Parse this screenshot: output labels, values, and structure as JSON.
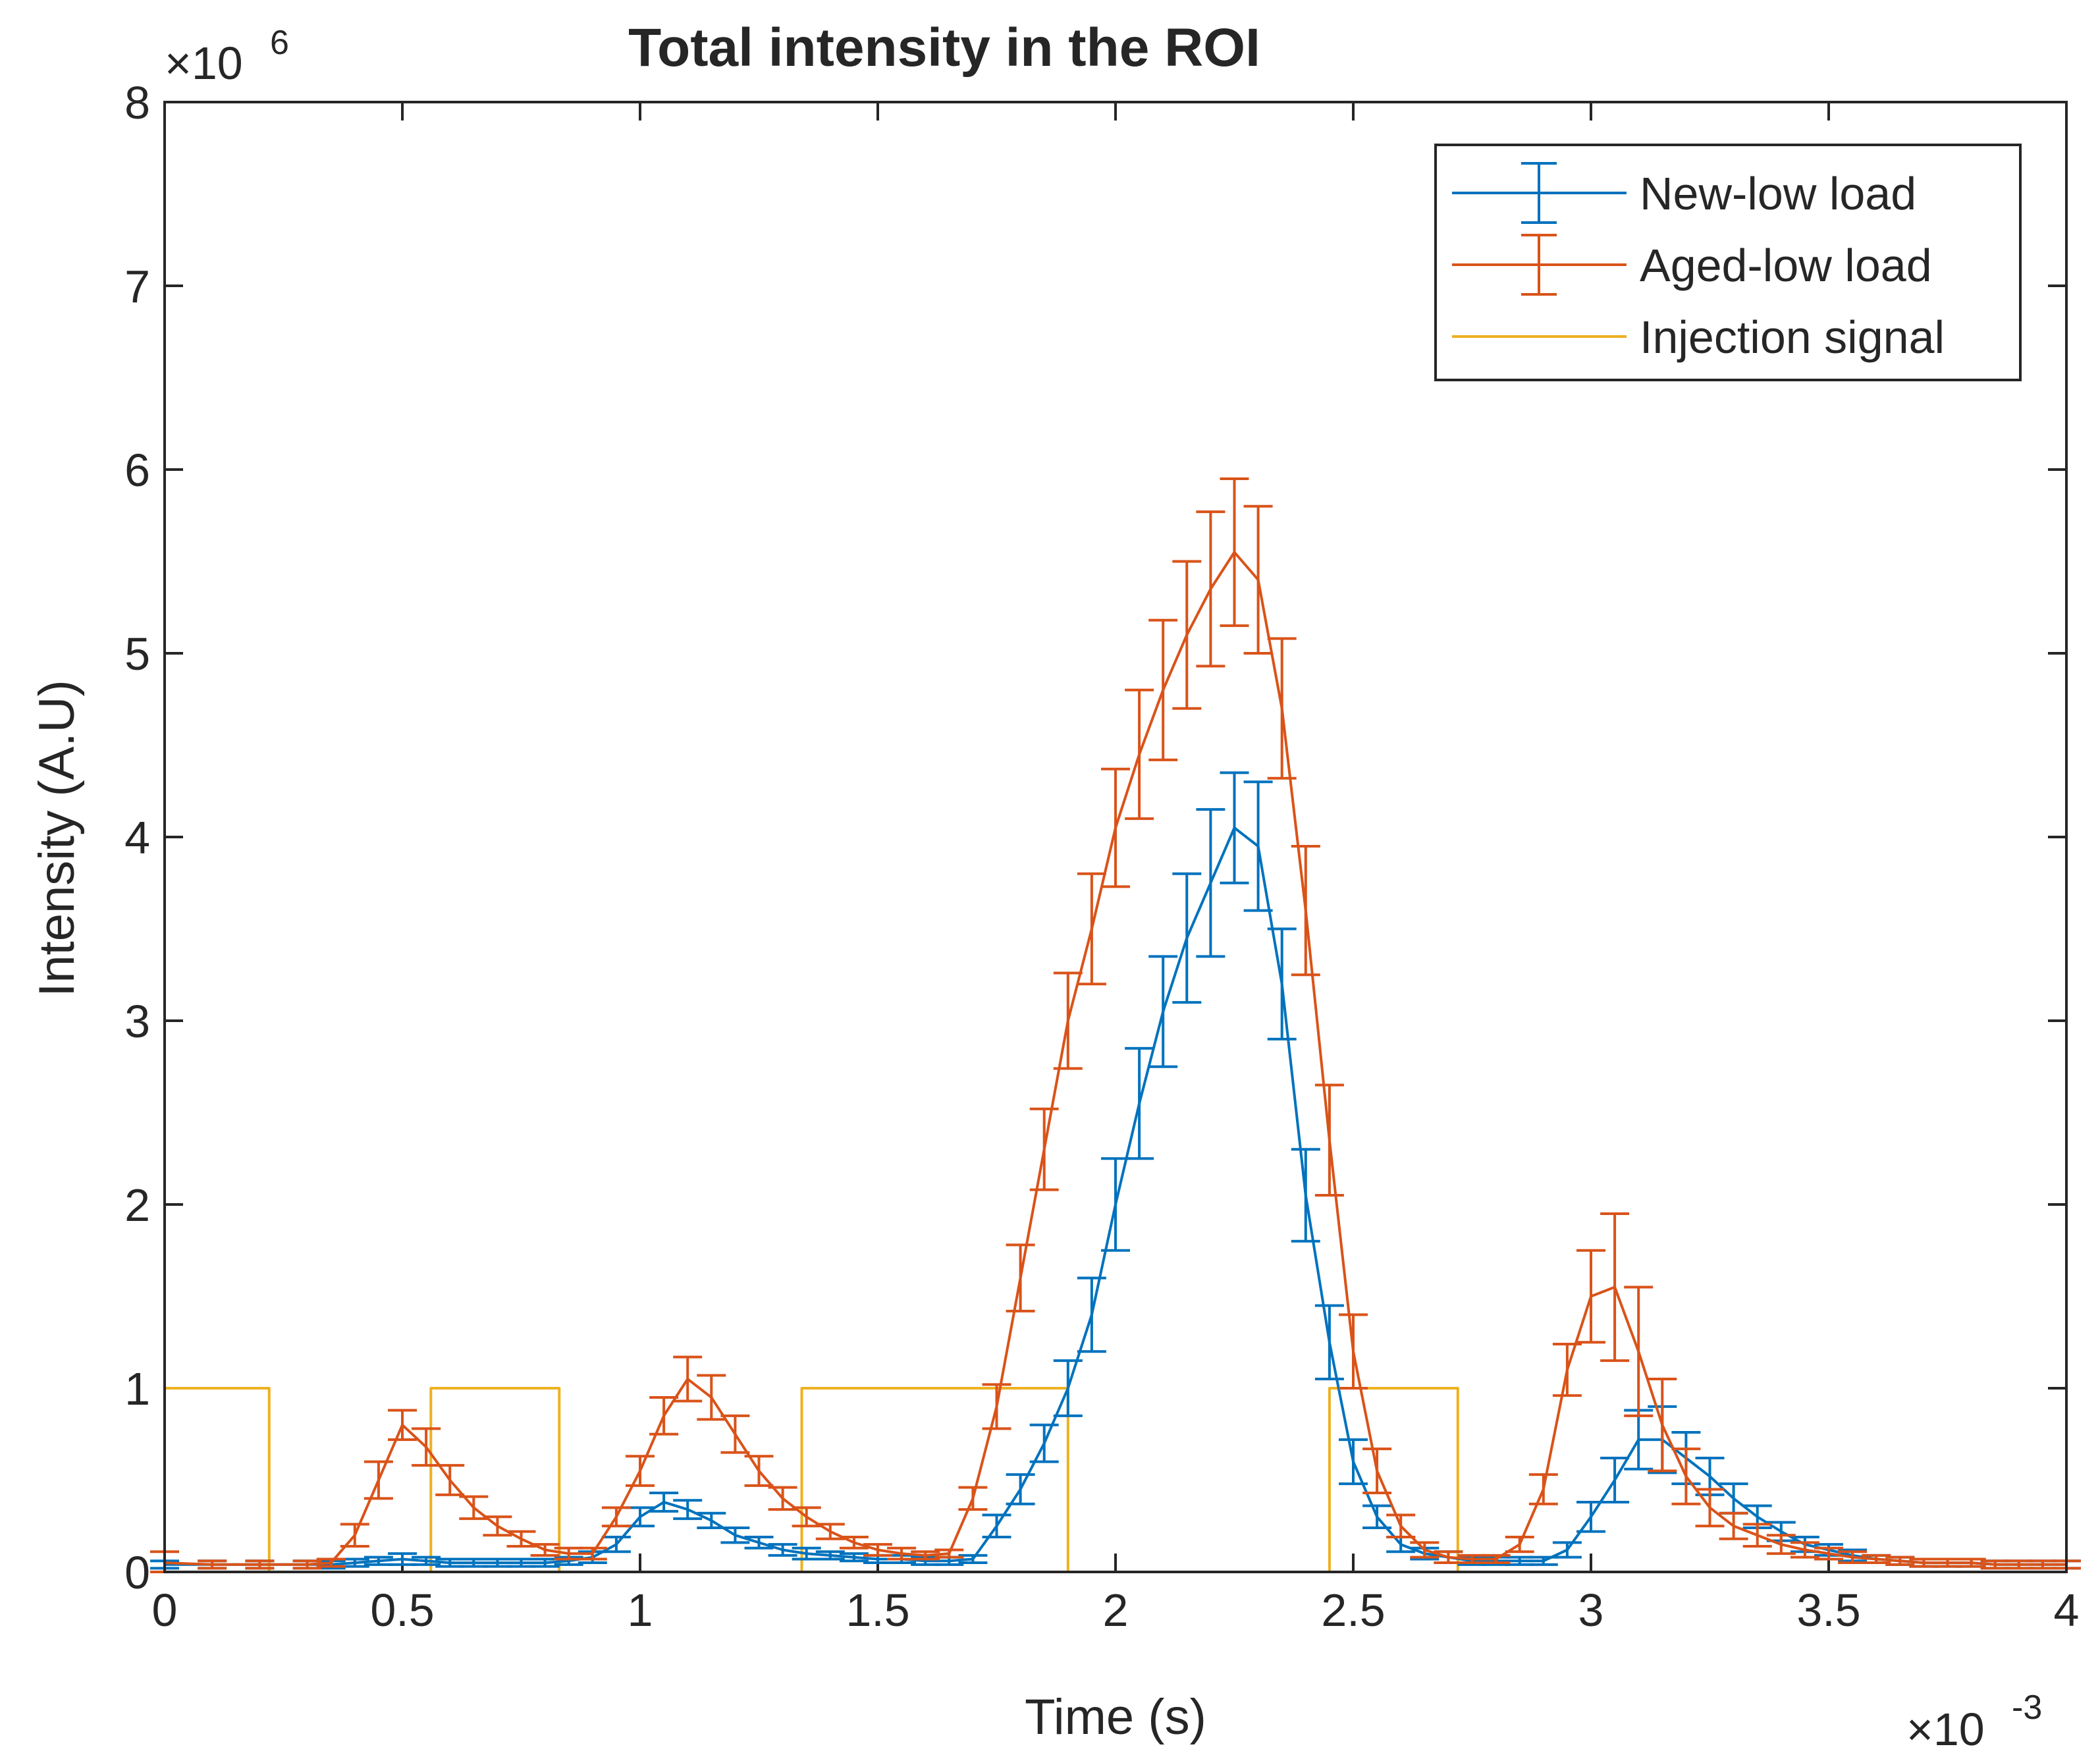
{
  "chart_data": {
    "type": "line",
    "title": "Total intensity in the ROI",
    "xlabel": "Time (s)",
    "ylabel": "Intensity (A.U)",
    "x_multiplier": "×10",
    "x_multiplier_exp": "-3",
    "y_multiplier": "×10",
    "y_multiplier_exp": "6",
    "xlim": [
      0,
      4
    ],
    "ylim": [
      0,
      8
    ],
    "x_ticks": [
      0,
      0.5,
      1,
      1.5,
      2,
      2.5,
      3,
      3.5,
      4
    ],
    "x_tick_labels": [
      "0",
      "0.5",
      "1",
      "1.5",
      "2",
      "2.5",
      "3",
      "3.5",
      "4"
    ],
    "y_ticks": [
      0,
      1,
      2,
      3,
      4,
      5,
      6,
      7,
      8
    ],
    "y_tick_labels": [
      "0",
      "1",
      "2",
      "3",
      "4",
      "5",
      "6",
      "7",
      "8"
    ],
    "grid": false,
    "legend_position": "top-right",
    "x_units_note": "x values in units of 1e-3 s; y values in units of 1e6",
    "series": [
      {
        "name": "New-low load",
        "color": "#0072BD",
        "error_bars": true,
        "x": [
          0,
          0.1,
          0.2,
          0.3,
          0.35,
          0.4,
          0.45,
          0.5,
          0.55,
          0.6,
          0.65,
          0.7,
          0.75,
          0.8,
          0.85,
          0.9,
          0.95,
          1,
          1.05,
          1.1,
          1.15,
          1.2,
          1.25,
          1.3,
          1.35,
          1.4,
          1.45,
          1.5,
          1.55,
          1.6,
          1.65,
          1.7,
          1.75,
          1.8,
          1.85,
          1.9,
          1.95,
          2,
          2.05,
          2.1,
          2.15,
          2.2,
          2.25,
          2.3,
          2.35,
          2.4,
          2.45,
          2.5,
          2.55,
          2.6,
          2.65,
          2.7,
          2.75,
          2.8,
          2.85,
          2.9,
          2.95,
          3,
          3.05,
          3.1,
          3.15,
          3.2,
          3.25,
          3.3,
          3.35,
          3.4,
          3.45,
          3.5,
          3.55,
          3.6,
          3.65,
          3.7,
          3.75,
          3.8,
          3.85,
          3.9,
          3.95,
          4
        ],
        "y": [
          0.04,
          0.04,
          0.04,
          0.04,
          0.04,
          0.05,
          0.06,
          0.07,
          0.06,
          0.05,
          0.05,
          0.05,
          0.05,
          0.05,
          0.06,
          0.08,
          0.15,
          0.3,
          0.38,
          0.34,
          0.28,
          0.2,
          0.16,
          0.12,
          0.1,
          0.09,
          0.08,
          0.07,
          0.07,
          0.06,
          0.06,
          0.07,
          0.25,
          0.45,
          0.7,
          1.0,
          1.4,
          2.0,
          2.55,
          3.05,
          3.45,
          3.75,
          4.05,
          3.95,
          3.2,
          2.05,
          1.25,
          0.6,
          0.3,
          0.15,
          0.1,
          0.08,
          0.06,
          0.06,
          0.06,
          0.06,
          0.12,
          0.3,
          0.5,
          0.72,
          0.72,
          0.62,
          0.52,
          0.4,
          0.3,
          0.22,
          0.15,
          0.12,
          0.09,
          0.07,
          0.06,
          0.05,
          0.05,
          0.05,
          0.04,
          0.04,
          0.04,
          0.04
        ],
        "err": [
          0.02,
          0.02,
          0.02,
          0.02,
          0.02,
          0.02,
          0.02,
          0.03,
          0.02,
          0.02,
          0.02,
          0.02,
          0.02,
          0.02,
          0.02,
          0.03,
          0.04,
          0.05,
          0.05,
          0.05,
          0.04,
          0.04,
          0.03,
          0.03,
          0.03,
          0.02,
          0.02,
          0.02,
          0.02,
          0.02,
          0.02,
          0.02,
          0.06,
          0.08,
          0.1,
          0.15,
          0.2,
          0.25,
          0.3,
          0.3,
          0.35,
          0.4,
          0.3,
          0.35,
          0.3,
          0.25,
          0.2,
          0.12,
          0.06,
          0.04,
          0.03,
          0.03,
          0.02,
          0.02,
          0.02,
          0.02,
          0.04,
          0.08,
          0.12,
          0.16,
          0.18,
          0.14,
          0.1,
          0.08,
          0.06,
          0.05,
          0.04,
          0.03,
          0.03,
          0.02,
          0.02,
          0.02,
          0.02,
          0.02,
          0.02,
          0.02,
          0.02,
          0.02
        ]
      },
      {
        "name": "Aged-low load",
        "color": "#D95319",
        "error_bars": true,
        "x": [
          0,
          0.1,
          0.2,
          0.3,
          0.35,
          0.4,
          0.45,
          0.5,
          0.55,
          0.6,
          0.65,
          0.7,
          0.75,
          0.8,
          0.85,
          0.9,
          0.95,
          1,
          1.05,
          1.1,
          1.15,
          1.2,
          1.25,
          1.3,
          1.35,
          1.4,
          1.45,
          1.5,
          1.55,
          1.6,
          1.65,
          1.7,
          1.75,
          1.8,
          1.85,
          1.9,
          1.95,
          2,
          2.05,
          2.1,
          2.15,
          2.2,
          2.25,
          2.3,
          2.35,
          2.4,
          2.45,
          2.5,
          2.55,
          2.6,
          2.65,
          2.7,
          2.75,
          2.8,
          2.85,
          2.9,
          2.95,
          3,
          3.05,
          3.1,
          3.15,
          3.2,
          3.25,
          3.3,
          3.35,
          3.4,
          3.45,
          3.5,
          3.55,
          3.6,
          3.65,
          3.7,
          3.75,
          3.8,
          3.85,
          3.9,
          3.95,
          4
        ],
        "y": [
          0.05,
          0.04,
          0.04,
          0.04,
          0.05,
          0.2,
          0.5,
          0.8,
          0.68,
          0.5,
          0.35,
          0.25,
          0.18,
          0.12,
          0.1,
          0.1,
          0.3,
          0.55,
          0.85,
          1.05,
          0.95,
          0.75,
          0.55,
          0.4,
          0.3,
          0.22,
          0.16,
          0.12,
          0.1,
          0.09,
          0.1,
          0.4,
          0.9,
          1.6,
          2.3,
          3.0,
          3.5,
          4.05,
          4.45,
          4.8,
          5.1,
          5.35,
          5.55,
          5.4,
          4.7,
          3.6,
          2.35,
          1.2,
          0.55,
          0.25,
          0.12,
          0.08,
          0.07,
          0.07,
          0.15,
          0.45,
          1.1,
          1.5,
          1.55,
          1.2,
          0.8,
          0.52,
          0.35,
          0.25,
          0.2,
          0.15,
          0.12,
          0.1,
          0.08,
          0.07,
          0.06,
          0.05,
          0.05,
          0.05,
          0.04,
          0.04,
          0.04,
          0.04
        ],
        "err": [
          0.06,
          0.02,
          0.02,
          0.02,
          0.02,
          0.06,
          0.1,
          0.08,
          0.1,
          0.08,
          0.06,
          0.05,
          0.04,
          0.03,
          0.03,
          0.03,
          0.05,
          0.08,
          0.1,
          0.12,
          0.12,
          0.1,
          0.08,
          0.06,
          0.05,
          0.04,
          0.03,
          0.03,
          0.03,
          0.02,
          0.02,
          0.06,
          0.12,
          0.18,
          0.22,
          0.26,
          0.3,
          0.32,
          0.35,
          0.38,
          0.4,
          0.42,
          0.4,
          0.4,
          0.38,
          0.35,
          0.3,
          0.2,
          0.12,
          0.06,
          0.04,
          0.03,
          0.02,
          0.02,
          0.04,
          0.08,
          0.14,
          0.25,
          0.4,
          0.35,
          0.25,
          0.15,
          0.1,
          0.07,
          0.06,
          0.05,
          0.04,
          0.03,
          0.03,
          0.02,
          0.02,
          0.02,
          0.02,
          0.02,
          0.02,
          0.02,
          0.02,
          0.02
        ]
      },
      {
        "name": "Injection signal",
        "color": "#EDB120",
        "error_bars": false,
        "x": [
          0,
          0,
          0.22,
          0.22,
          0.56,
          0.56,
          0.83,
          0.83,
          1.34,
          1.34,
          1.9,
          1.9,
          2.45,
          2.45,
          2.72,
          2.72,
          4
        ],
        "y": [
          0,
          1,
          1,
          0,
          0,
          1,
          1,
          0,
          0,
          1,
          1,
          0,
          0,
          1,
          1,
          0,
          0
        ]
      }
    ]
  }
}
